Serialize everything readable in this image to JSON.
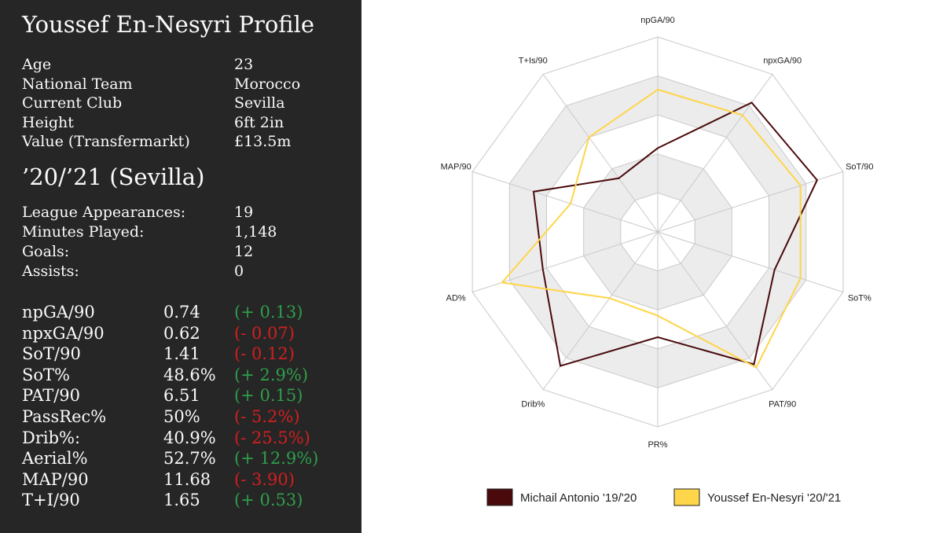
{
  "profile": {
    "title": "Youssef En-Nesyri Profile",
    "info": [
      {
        "label": "Age",
        "value": "23"
      },
      {
        "label": "National Team",
        "value": "Morocco"
      },
      {
        "label": "Current Club",
        "value": "Sevilla"
      },
      {
        "label": "Height",
        "value": "6ft 2in"
      },
      {
        "label": "Value (Transfermarkt)",
        "value": "£13.5m"
      }
    ],
    "season_title": "’20/’21 (Sevilla)",
    "season": [
      {
        "label": "League Appearances:",
        "value": "19"
      },
      {
        "label": "Minutes Played:",
        "value": "1,148"
      },
      {
        "label": "Goals:",
        "value": "12"
      },
      {
        "label": "Assists:",
        "value": "0"
      }
    ],
    "stats": [
      {
        "label": "npGA/90",
        "value": "0.74",
        "diff": "(+ 0.13)",
        "trend": "up"
      },
      {
        "label": "npxGA/90",
        "value": "0.62",
        "diff": "(- 0.07)",
        "trend": "down"
      },
      {
        "label": "SoT/90",
        "value": "1.41",
        "diff": "(- 0.12)",
        "trend": "down"
      },
      {
        "label": "SoT%",
        "value": "48.6%",
        "diff": "(+ 2.9%)",
        "trend": "up"
      },
      {
        "label": "PAT/90",
        "value": "6.51",
        "diff": "(+ 0.15)",
        "trend": "up"
      },
      {
        "label": "PassRec%",
        "value": "50%",
        "diff": "(- 5.2%)",
        "trend": "down"
      },
      {
        "label": "Drib%:",
        "value": "40.9%",
        "diff": "(- 25.5%)",
        "trend": "down"
      },
      {
        "label": "Aerial%",
        "value": "52.7%",
        "diff": "(+ 12.9%)",
        "trend": "up"
      },
      {
        "label": "MAP/90",
        "value": "11.68",
        "diff": "(- 3.90)",
        "trend": "down"
      },
      {
        "label": "T+I/90",
        "value": "1.65",
        "diff": "(+ 0.53)",
        "trend": "up"
      }
    ]
  },
  "colors": {
    "panel_bg": "#262626",
    "up": "#2e9e4a",
    "down": "#d21f1f",
    "antonio": "#4a0a0c",
    "ennesyri": "#ffd54a",
    "grid_band": "#ececec",
    "grid_line": "#c9c9c9"
  },
  "chart_data": {
    "type": "radar",
    "axes": [
      "npGA/90",
      "npxGA/90",
      "SoT/90",
      "SoT%",
      "PAT/90",
      "PR%",
      "Drib%",
      "AD%",
      "MAP/90",
      "T+Is/90"
    ],
    "scale": [
      0,
      1
    ],
    "grid_levels": 5,
    "series": [
      {
        "name": "Michail Antonio '19/'20",
        "color": "#4a0a0c",
        "values": [
          0.43,
          0.82,
          0.86,
          0.63,
          0.84,
          0.54,
          0.85,
          0.62,
          0.67,
          0.34
        ]
      },
      {
        "name": "Youssef En-Nesyri '20/'21",
        "color": "#ffd54a",
        "values": [
          0.73,
          0.74,
          0.77,
          0.77,
          0.86,
          0.43,
          0.42,
          0.84,
          0.47,
          0.6
        ]
      }
    ],
    "legend_position": "bottom"
  }
}
